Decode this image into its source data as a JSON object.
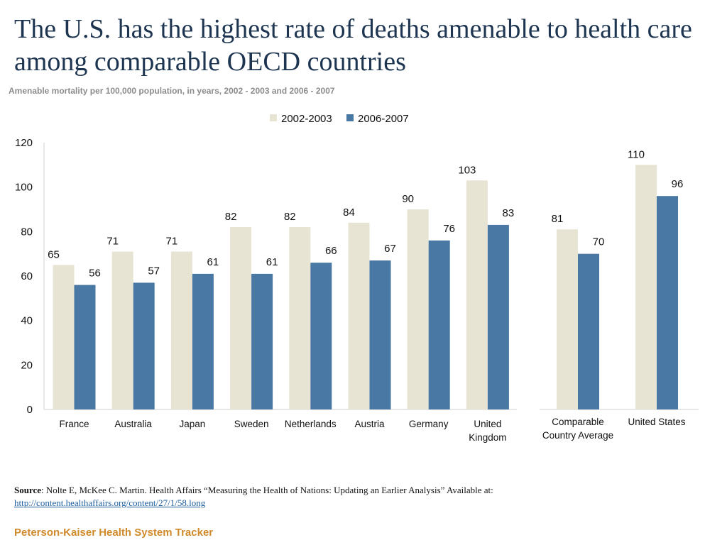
{
  "title": "The U.S. has the highest rate of deaths amenable to health care among comparable OECD countries",
  "subtitle": "Amenable mortality per 100,000 population, in years, 2002 - 2003 and 2006 - 2007",
  "source": {
    "label": "Source",
    "text": ": Nolte E, McKee C. Martin. Health Affairs “Measuring the Health of Nations: Updating an Earlier Analysis” Available at:",
    "link": "http://content.healthaffairs.org/content/27/1/58.long"
  },
  "brand": "Peterson-Kaiser Health System Tracker",
  "colors": {
    "series1": "#e8e4d3",
    "series2": "#4a78a4",
    "axis": "#cfcfcf",
    "text": "#111111"
  },
  "chart_data": {
    "type": "bar",
    "title": "Amenable mortality per 100,000 population",
    "ylim": [
      0,
      120
    ],
    "yticks": [
      "0",
      "20",
      "40",
      "60",
      "80",
      "100",
      "120"
    ],
    "legend": {
      "position": "top-center",
      "labels": [
        "2002-2003",
        "2006-2007"
      ]
    },
    "panels": [
      {
        "categories": [
          [
            "France"
          ],
          [
            "Australia"
          ],
          [
            "Japan"
          ],
          [
            "Sweden"
          ],
          [
            "Netherlands"
          ],
          [
            "Austria"
          ],
          [
            "Germany"
          ],
          [
            "United",
            "Kingdom"
          ]
        ],
        "series": [
          {
            "name": "2002-2003",
            "values": [
              65,
              71,
              71,
              82,
              82,
              84,
              90,
              103
            ]
          },
          {
            "name": "2006-2007",
            "values": [
              56,
              57,
              61,
              61,
              66,
              67,
              76,
              83
            ]
          }
        ]
      },
      {
        "categories": [
          [
            "Comparable",
            "Country Average"
          ],
          [
            "United States"
          ]
        ],
        "series": [
          {
            "name": "2002-2003",
            "values": [
              81,
              110
            ]
          },
          {
            "name": "2006-2007",
            "values": [
              70,
              96
            ]
          }
        ]
      }
    ]
  }
}
